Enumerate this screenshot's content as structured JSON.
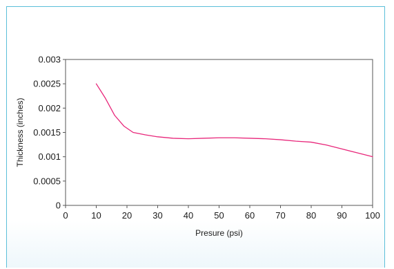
{
  "colors": {
    "frame_border": "#5bbfd9",
    "line": "#e8267a",
    "axis": "#555555"
  },
  "chart_data": {
    "type": "line",
    "title": "",
    "xlabel": "Presure (psi)",
    "ylabel": "Thickness (inches)",
    "xlim": [
      0,
      100
    ],
    "ylim": [
      0,
      0.003
    ],
    "grid": false,
    "x_ticks": [
      0,
      10,
      20,
      30,
      40,
      50,
      60,
      70,
      80,
      90,
      100
    ],
    "x_tick_labels": [
      "0",
      "10",
      "20",
      "30",
      "40",
      "50",
      "60",
      "70",
      "80",
      "90",
      "100"
    ],
    "y_ticks": [
      0,
      0.0005,
      0.001,
      0.0015,
      0.002,
      0.0025,
      0.003
    ],
    "y_tick_labels": [
      "0",
      "0.0005",
      "0.001",
      "0.0015",
      "0.002",
      "0.0025",
      "0.003"
    ],
    "series": [
      {
        "x": [
          10,
          13,
          16,
          19,
          22,
          26,
          30,
          35,
          40,
          45,
          50,
          55,
          60,
          65,
          70,
          75,
          80,
          85,
          90,
          95,
          100
        ],
        "y": [
          0.0025,
          0.0022,
          0.00185,
          0.00163,
          0.0015,
          0.00145,
          0.00141,
          0.00138,
          0.00137,
          0.00138,
          0.00139,
          0.00139,
          0.00138,
          0.00137,
          0.00135,
          0.00132,
          0.0013,
          0.00124,
          0.00116,
          0.00108,
          0.001
        ]
      }
    ]
  }
}
